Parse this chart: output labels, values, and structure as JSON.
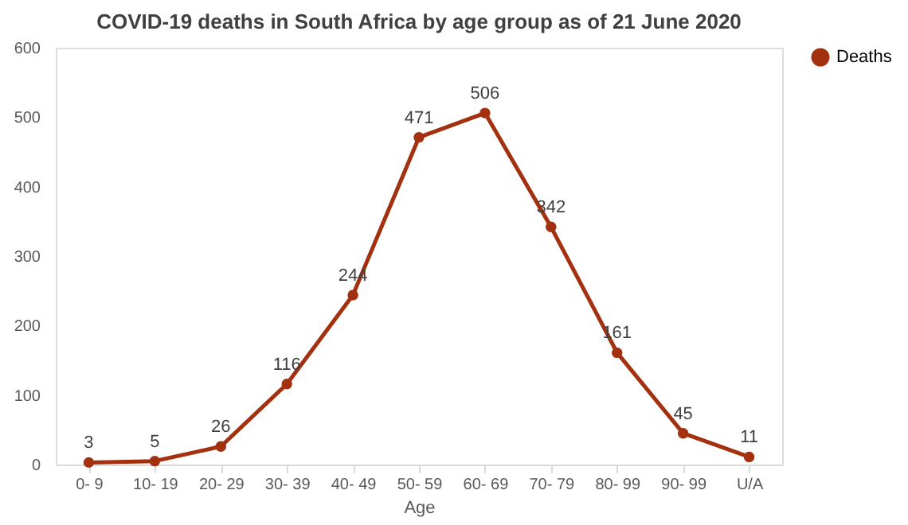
{
  "chart_data": {
    "type": "line",
    "title": "COVID-19 deaths in South Africa by age group as of 21 June 2020",
    "xlabel": "Age",
    "categories": [
      "0- 9",
      "10- 19",
      "20- 29",
      "30- 39",
      "40- 49",
      "50- 59",
      "60- 69",
      "70- 79",
      "80- 99",
      "90- 99",
      "U/A"
    ],
    "series": [
      {
        "name": "Deaths",
        "color": "#a3300f",
        "values": [
          3,
          5,
          26,
          116,
          244,
          471,
          506,
          342,
          161,
          45,
          11
        ]
      }
    ],
    "ylim": [
      0,
      600
    ],
    "yticks": [
      0,
      100,
      200,
      300,
      400,
      500,
      600
    ],
    "grid": false,
    "legend": "right",
    "marker": "circle",
    "line_style": "solid",
    "data_labels": true
  }
}
